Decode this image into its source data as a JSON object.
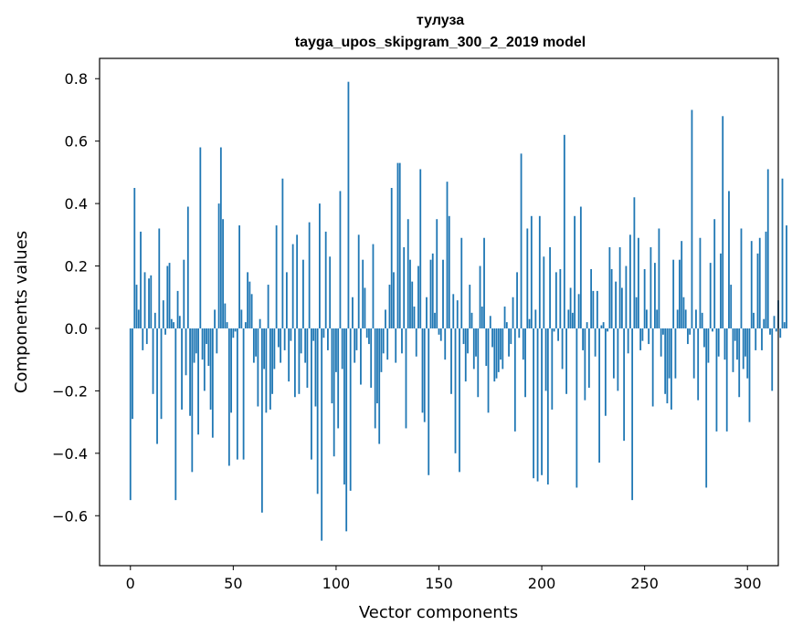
{
  "chart_data": {
    "type": "bar",
    "title": "тулуза",
    "subtitle": "tayga_upos_skipgram_300_2_2019 model",
    "xlabel": "Vector components",
    "ylabel": "Components values",
    "xlim": [
      -15,
      315
    ],
    "ylim": [
      -0.76,
      0.865
    ],
    "x_ticks": [
      0,
      50,
      100,
      150,
      200,
      250,
      300
    ],
    "x_tick_labels": [
      "0",
      "50",
      "100",
      "150",
      "200",
      "250",
      "300"
    ],
    "y_ticks": [
      -0.6,
      -0.4,
      -0.2,
      0.0,
      0.2,
      0.4,
      0.6,
      0.8
    ],
    "y_tick_labels": [
      "−0.6",
      "−0.4",
      "−0.2",
      "0.0",
      "0.2",
      "0.4",
      "0.6",
      "0.8"
    ],
    "grid": false,
    "bar_color": "#1f77b4",
    "values": [
      -0.55,
      -0.29,
      0.45,
      0.14,
      0.06,
      0.31,
      -0.07,
      0.18,
      -0.05,
      0.16,
      0.17,
      -0.21,
      0.05,
      -0.37,
      0.32,
      -0.29,
      0.09,
      -0.02,
      0.2,
      0.21,
      0.03,
      0.02,
      -0.55,
      0.12,
      0.04,
      -0.26,
      0.22,
      -0.15,
      0.39,
      -0.28,
      -0.46,
      -0.11,
      -0.08,
      -0.34,
      0.58,
      -0.1,
      -0.2,
      -0.05,
      -0.12,
      -0.26,
      -0.35,
      0.06,
      -0.08,
      0.4,
      0.58,
      0.35,
      0.08,
      0.02,
      -0.44,
      -0.27,
      -0.03,
      -0.01,
      -0.42,
      0.33,
      0.06,
      -0.42,
      0.02,
      0.18,
      0.15,
      0.11,
      -0.11,
      -0.09,
      -0.25,
      0.03,
      -0.59,
      -0.13,
      -0.27,
      0.14,
      -0.26,
      -0.21,
      -0.13,
      0.33,
      -0.06,
      -0.11,
      0.48,
      -0.07,
      0.18,
      -0.17,
      -0.04,
      0.27,
      -0.22,
      0.3,
      -0.21,
      -0.08,
      0.22,
      -0.11,
      -0.19,
      0.34,
      -0.42,
      -0.04,
      -0.25,
      -0.53,
      0.4,
      -0.68,
      -0.03,
      0.31,
      -0.07,
      0.23,
      -0.24,
      -0.41,
      -0.14,
      -0.32,
      0.44,
      -0.13,
      -0.5,
      -0.65,
      0.79,
      -0.52,
      0.1,
      -0.11,
      -0.07,
      0.3,
      -0.18,
      0.22,
      0.13,
      -0.03,
      -0.05,
      -0.19,
      0.27,
      -0.32,
      -0.24,
      -0.37,
      -0.14,
      -0.08,
      0.06,
      -0.1,
      0.14,
      0.45,
      0.18,
      -0.11,
      0.53,
      0.53,
      -0.08,
      0.26,
      -0.32,
      0.35,
      0.22,
      0.15,
      0.07,
      -0.09,
      0.2,
      0.51,
      -0.27,
      -0.3,
      0.1,
      -0.47,
      0.22,
      0.24,
      0.05,
      0.35,
      -0.02,
      -0.04,
      0.22,
      -0.1,
      0.47,
      0.36,
      -0.21,
      0.11,
      -0.4,
      0.09,
      -0.46,
      0.29,
      -0.05,
      -0.17,
      -0.08,
      0.14,
      0.05,
      -0.13,
      -0.09,
      -0.22,
      0.2,
      0.07,
      0.29,
      -0.12,
      -0.27,
      0.04,
      -0.06,
      -0.17,
      -0.16,
      -0.14,
      -0.1,
      -0.13,
      0.07,
      0.02,
      -0.09,
      -0.05,
      0.1,
      -0.33,
      0.18,
      -0.03,
      0.56,
      -0.1,
      -0.22,
      0.32,
      0.03,
      0.36,
      -0.48,
      0.06,
      -0.49,
      0.36,
      -0.47,
      0.23,
      -0.2,
      -0.5,
      0.26,
      -0.26,
      -0.01,
      0.18,
      -0.04,
      0.19,
      -0.13,
      0.62,
      -0.21,
      0.06,
      0.13,
      0.05,
      0.36,
      -0.51,
      0.11,
      0.39,
      -0.07,
      -0.23,
      0.02,
      -0.19,
      0.19,
      0.12,
      -0.09,
      0.12,
      -0.43,
      0.01,
      0.02,
      -0.28,
      -0.01,
      0.26,
      0.19,
      -0.16,
      0.15,
      -0.2,
      0.26,
      0.13,
      -0.36,
      0.2,
      -0.08,
      0.3,
      -0.55,
      0.42,
      0.1,
      0.29,
      -0.07,
      -0.04,
      0.19,
      0.06,
      -0.05,
      0.26,
      -0.25,
      0.21,
      0.06,
      0.32,
      -0.09,
      -0.02,
      -0.21,
      -0.24,
      -0.16,
      -0.26,
      0.22,
      -0.16,
      0.06,
      0.22,
      0.28,
      0.1,
      0.06,
      -0.05,
      -0.02,
      0.7,
      -0.16,
      0.06,
      -0.23,
      0.29,
      0.05,
      -0.06,
      -0.51,
      -0.11,
      0.21,
      -0.01,
      0.35,
      -0.33,
      -0.09,
      0.24,
      0.68,
      -0.1,
      -0.33,
      0.44,
      0.14,
      -0.14,
      -0.04,
      -0.1,
      -0.22,
      0.32,
      -0.13,
      -0.09,
      -0.16,
      -0.3,
      0.28,
      0.05,
      -0.07,
      0.24,
      0.29,
      -0.07,
      0.03,
      0.31,
      0.51,
      -0.02,
      -0.2,
      0.04,
      -0.01,
      0.09,
      -0.03,
      0.48,
      0.02,
      0.33
    ]
  }
}
